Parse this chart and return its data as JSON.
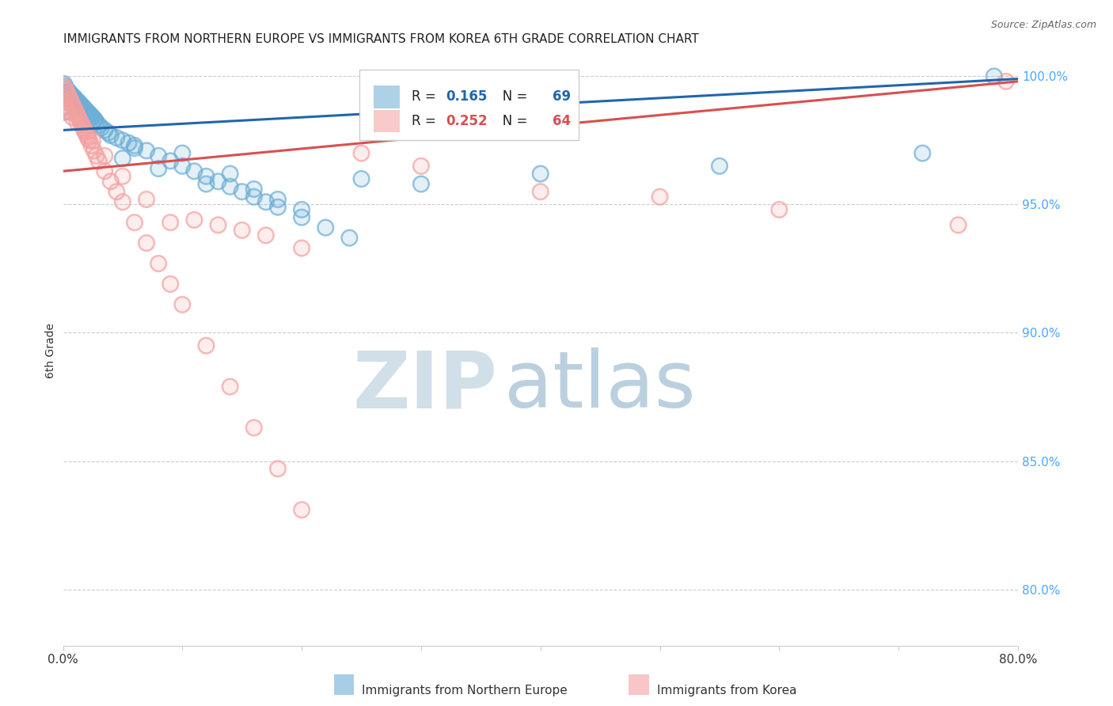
{
  "title": "IMMIGRANTS FROM NORTHERN EUROPE VS IMMIGRANTS FROM KOREA 6TH GRADE CORRELATION CHART",
  "source": "Source: ZipAtlas.com",
  "ylabel": "6th Grade",
  "blue_label": "Immigrants from Northern Europe",
  "pink_label": "Immigrants from Korea",
  "blue_R": 0.165,
  "blue_N": 69,
  "pink_R": 0.252,
  "pink_N": 64,
  "blue_color": "#6baed6",
  "pink_color": "#f4a0a0",
  "blue_line_color": "#2166ac",
  "pink_line_color": "#d94f4f",
  "right_axis_color": "#4da6ff",
  "watermark_zip_color": "#d0dfe8",
  "watermark_atlas_color": "#b0c8da",
  "xlim": [
    0.0,
    0.8
  ],
  "ylim": [
    0.778,
    1.008
  ],
  "right_yticks": [
    0.8,
    0.85,
    0.9,
    0.95,
    1.0
  ],
  "right_ytick_labels": [
    "80.0%",
    "85.0%",
    "90.0%",
    "95.0%",
    "100.0%"
  ],
  "blue_x": [
    0.001,
    0.002,
    0.003,
    0.004,
    0.005,
    0.006,
    0.007,
    0.008,
    0.009,
    0.01,
    0.011,
    0.012,
    0.013,
    0.014,
    0.015,
    0.016,
    0.017,
    0.018,
    0.019,
    0.02,
    0.021,
    0.022,
    0.023,
    0.024,
    0.025,
    0.026,
    0.027,
    0.028,
    0.03,
    0.032,
    0.035,
    0.038,
    0.04,
    0.045,
    0.05,
    0.055,
    0.06,
    0.07,
    0.08,
    0.09,
    0.1,
    0.11,
    0.12,
    0.13,
    0.14,
    0.15,
    0.16,
    0.17,
    0.18,
    0.2,
    0.22,
    0.24,
    0.05,
    0.06,
    0.08,
    0.1,
    0.12,
    0.14,
    0.16,
    0.18,
    0.2,
    0.25,
    0.3,
    0.4,
    0.55,
    0.72,
    0.78,
    0.001,
    0.002
  ],
  "blue_y": [
    0.997,
    0.996,
    0.995,
    0.994,
    0.994,
    0.993,
    0.993,
    0.992,
    0.992,
    0.991,
    0.991,
    0.99,
    0.99,
    0.989,
    0.989,
    0.988,
    0.988,
    0.987,
    0.987,
    0.986,
    0.986,
    0.985,
    0.985,
    0.984,
    0.984,
    0.983,
    0.983,
    0.982,
    0.981,
    0.98,
    0.979,
    0.978,
    0.977,
    0.976,
    0.975,
    0.974,
    0.973,
    0.971,
    0.969,
    0.967,
    0.965,
    0.963,
    0.961,
    0.959,
    0.957,
    0.955,
    0.953,
    0.951,
    0.949,
    0.945,
    0.941,
    0.937,
    0.968,
    0.972,
    0.964,
    0.97,
    0.958,
    0.962,
    0.956,
    0.952,
    0.948,
    0.96,
    0.958,
    0.962,
    0.965,
    0.97,
    1.0,
    0.986,
    0.988
  ],
  "pink_x": [
    0.001,
    0.002,
    0.003,
    0.004,
    0.005,
    0.006,
    0.007,
    0.008,
    0.009,
    0.01,
    0.011,
    0.012,
    0.013,
    0.014,
    0.015,
    0.016,
    0.017,
    0.018,
    0.019,
    0.02,
    0.021,
    0.022,
    0.024,
    0.026,
    0.028,
    0.03,
    0.035,
    0.04,
    0.045,
    0.05,
    0.06,
    0.07,
    0.08,
    0.09,
    0.1,
    0.12,
    0.14,
    0.16,
    0.18,
    0.2,
    0.001,
    0.002,
    0.003,
    0.005,
    0.008,
    0.012,
    0.018,
    0.025,
    0.035,
    0.05,
    0.07,
    0.09,
    0.11,
    0.13,
    0.15,
    0.17,
    0.2,
    0.25,
    0.3,
    0.4,
    0.5,
    0.6,
    0.75,
    0.79
  ],
  "pink_y": [
    0.996,
    0.995,
    0.994,
    0.993,
    0.992,
    0.991,
    0.99,
    0.989,
    0.988,
    0.987,
    0.986,
    0.985,
    0.984,
    0.983,
    0.982,
    0.981,
    0.98,
    0.979,
    0.978,
    0.977,
    0.976,
    0.975,
    0.973,
    0.971,
    0.969,
    0.967,
    0.963,
    0.959,
    0.955,
    0.951,
    0.943,
    0.935,
    0.927,
    0.919,
    0.911,
    0.895,
    0.879,
    0.863,
    0.847,
    0.831,
    0.99,
    0.988,
    0.987,
    0.986,
    0.984,
    0.982,
    0.979,
    0.975,
    0.969,
    0.961,
    0.952,
    0.943,
    0.944,
    0.942,
    0.94,
    0.938,
    0.933,
    0.97,
    0.965,
    0.955,
    0.953,
    0.948,
    0.942,
    0.998
  ]
}
